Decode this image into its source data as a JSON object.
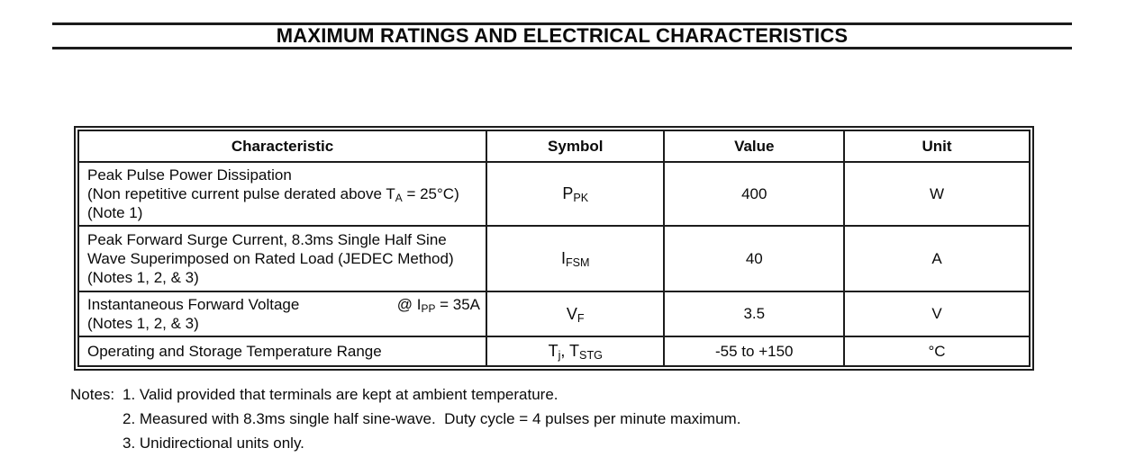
{
  "title": {
    "text": "MAXIMUM RATINGS AND ELECTRICAL CHARACTERISTICS"
  },
  "table": {
    "headers": [
      "Characteristic",
      "Symbol",
      "Value",
      "Unit"
    ],
    "rows": [
      {
        "characteristic_lines": [
          [
            {
              "t": "Peak Pulse Power Dissipation"
            }
          ],
          [
            {
              "t": "(Non repetitive current pulse derated above T"
            },
            {
              "t": "A",
              "sub": true
            },
            {
              "t": " = 25°C)"
            }
          ],
          [
            {
              "t": "(Note 1)"
            }
          ]
        ],
        "symbol": [
          {
            "t": "P"
          },
          {
            "t": "PK",
            "sub": true
          }
        ],
        "value": "400",
        "unit": "W"
      },
      {
        "characteristic_lines": [
          [
            {
              "t": "Peak Forward Surge Current, 8.3ms Single Half Sine"
            }
          ],
          [
            {
              "t": "Wave Superimposed on Rated Load (JEDEC Method)"
            }
          ],
          [
            {
              "t": "(Notes 1, 2, & 3)"
            }
          ]
        ],
        "symbol": [
          {
            "t": "I"
          },
          {
            "t": "FSM",
            "sub": true
          }
        ],
        "value": "40",
        "unit": "A"
      },
      {
        "characteristic_lines": [
          [
            {
              "t": "Instantaneous Forward Voltage"
            }
          ],
          [
            {
              "t": "(Notes 1, 2, & 3)"
            }
          ]
        ],
        "annotation": [
          {
            "t": "@ I"
          },
          {
            "t": "PP",
            "sub": true
          },
          {
            "t": " = 35A"
          }
        ],
        "symbol": [
          {
            "t": "V"
          },
          {
            "t": "F",
            "sub": true
          }
        ],
        "value": "3.5",
        "unit": "V"
      },
      {
        "characteristic_lines": [
          [
            {
              "t": "Operating and Storage Temperature Range"
            }
          ]
        ],
        "symbol": [
          {
            "t": "T"
          },
          {
            "t": "j",
            "sub": true
          },
          {
            "t": ", T"
          },
          {
            "t": "STG",
            "sub": true
          }
        ],
        "value": "-55 to +150",
        "unit": "°C"
      }
    ]
  },
  "notes": {
    "label": "Notes:",
    "items": [
      "1. Valid provided that terminals are kept at ambient temperature.",
      "2. Measured with 8.3ms single half sine-wave.  Duty cycle = 4 pulses per minute maximum.",
      "3. Unidirectional units only."
    ]
  }
}
